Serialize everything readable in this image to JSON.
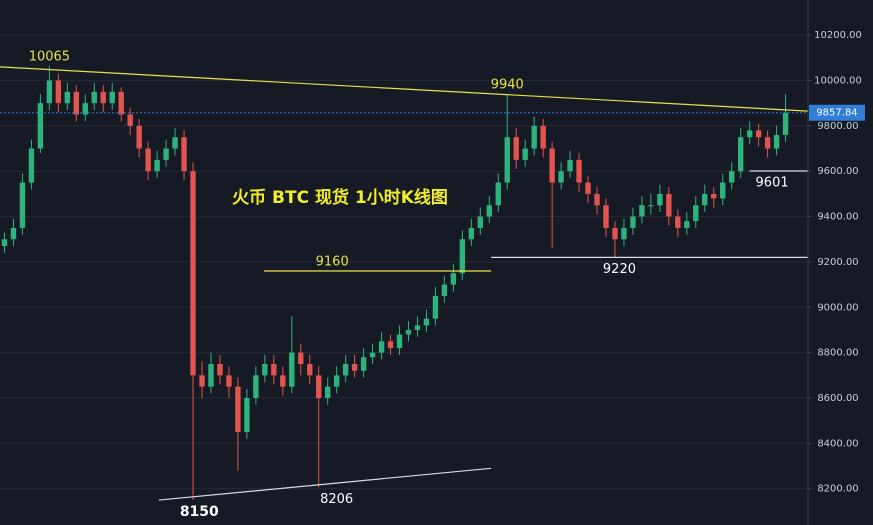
{
  "chart_data": {
    "type": "candlestick",
    "title": "火币 BTC 现货 1小时K线图",
    "up_color": "#2fb37d",
    "down_color": "#e2544e",
    "xlim": [
      -0.5,
      89.5
    ],
    "ylim": [
      8040,
      10355
    ],
    "yticks": [
      {
        "value": 8200,
        "label": "8200.00"
      },
      {
        "value": 8400,
        "label": "8400.00"
      },
      {
        "value": 8600,
        "label": "8600.00"
      },
      {
        "value": 8800,
        "label": "8800.00"
      },
      {
        "value": 9000,
        "label": "9000.00"
      },
      {
        "value": 9200,
        "label": "9200.00"
      },
      {
        "value": 9400,
        "label": "9400.00"
      },
      {
        "value": 9600,
        "label": "9600.00"
      },
      {
        "value": 9800,
        "label": "9800.00"
      },
      {
        "value": 10000,
        "label": "10000.00"
      },
      {
        "value": 10200,
        "label": "10200.00"
      }
    ],
    "grid": true,
    "candles": [
      [
        9270,
        9330,
        9240,
        9300
      ],
      [
        9300,
        9390,
        9270,
        9350
      ],
      [
        9350,
        9590,
        9320,
        9550
      ],
      [
        9550,
        9740,
        9520,
        9700
      ],
      [
        9700,
        9940,
        9680,
        9900
      ],
      [
        9900,
        10065,
        9870,
        10000
      ],
      [
        10000,
        10030,
        9860,
        9900
      ],
      [
        9900,
        9990,
        9870,
        9950
      ],
      [
        9950,
        9980,
        9820,
        9850
      ],
      [
        9850,
        9940,
        9820,
        9900
      ],
      [
        9900,
        9990,
        9870,
        9950
      ],
      [
        9950,
        9980,
        9860,
        9900
      ],
      [
        9900,
        9990,
        9870,
        9950
      ],
      [
        9950,
        9970,
        9820,
        9850
      ],
      [
        9850,
        9880,
        9760,
        9800
      ],
      [
        9800,
        9830,
        9660,
        9700
      ],
      [
        9700,
        9730,
        9560,
        9600
      ],
      [
        9600,
        9690,
        9570,
        9650
      ],
      [
        9650,
        9740,
        9620,
        9700
      ],
      [
        9700,
        9790,
        9670,
        9750
      ],
      [
        9750,
        9780,
        9560,
        9600
      ],
      [
        9600,
        9640,
        8150,
        8700
      ],
      [
        8700,
        8760,
        8600,
        8650
      ],
      [
        8650,
        8800,
        8620,
        8750
      ],
      [
        8750,
        8790,
        8660,
        8700
      ],
      [
        8700,
        8740,
        8600,
        8650
      ],
      [
        8650,
        8690,
        8280,
        8450
      ],
      [
        8450,
        8640,
        8420,
        8600
      ],
      [
        8600,
        8740,
        8570,
        8700
      ],
      [
        8700,
        8790,
        8670,
        8750
      ],
      [
        8750,
        8790,
        8660,
        8700
      ],
      [
        8700,
        8740,
        8610,
        8650
      ],
      [
        8650,
        8960,
        8620,
        8800
      ],
      [
        8800,
        8840,
        8700,
        8750
      ],
      [
        8750,
        8790,
        8660,
        8700
      ],
      [
        8700,
        8740,
        8206,
        8600
      ],
      [
        8600,
        8690,
        8570,
        8650
      ],
      [
        8650,
        8740,
        8620,
        8700
      ],
      [
        8700,
        8790,
        8670,
        8750
      ],
      [
        8750,
        8790,
        8690,
        8720
      ],
      [
        8720,
        8820,
        8690,
        8780
      ],
      [
        8780,
        8840,
        8750,
        8800
      ],
      [
        8800,
        8890,
        8770,
        8850
      ],
      [
        8850,
        8880,
        8790,
        8820
      ],
      [
        8820,
        8920,
        8790,
        8880
      ],
      [
        8880,
        8940,
        8850,
        8900
      ],
      [
        8900,
        8960,
        8870,
        8920
      ],
      [
        8920,
        8990,
        8890,
        8950
      ],
      [
        8950,
        9090,
        8920,
        9050
      ],
      [
        9050,
        9140,
        9020,
        9100
      ],
      [
        9100,
        9190,
        9070,
        9150
      ],
      [
        9150,
        9340,
        9120,
        9300
      ],
      [
        9300,
        9390,
        9270,
        9350
      ],
      [
        9350,
        9440,
        9320,
        9400
      ],
      [
        9400,
        9490,
        9370,
        9450
      ],
      [
        9450,
        9590,
        9420,
        9550
      ],
      [
        9550,
        9940,
        9520,
        9750
      ],
      [
        9750,
        9790,
        9610,
        9650
      ],
      [
        9650,
        9740,
        9620,
        9700
      ],
      [
        9700,
        9840,
        9670,
        9800
      ],
      [
        9800,
        9830,
        9660,
        9700
      ],
      [
        9700,
        9730,
        9260,
        9550
      ],
      [
        9550,
        9640,
        9520,
        9600
      ],
      [
        9600,
        9690,
        9570,
        9650
      ],
      [
        9650,
        9680,
        9510,
        9550
      ],
      [
        9550,
        9580,
        9460,
        9500
      ],
      [
        9500,
        9530,
        9410,
        9450
      ],
      [
        9450,
        9480,
        9310,
        9350
      ],
      [
        9350,
        9380,
        9220,
        9300
      ],
      [
        9300,
        9390,
        9270,
        9350
      ],
      [
        9350,
        9440,
        9320,
        9400
      ],
      [
        9400,
        9490,
        9370,
        9450
      ],
      [
        9450,
        9500,
        9410,
        9450
      ],
      [
        9450,
        9540,
        9420,
        9500
      ],
      [
        9500,
        9530,
        9360,
        9400
      ],
      [
        9400,
        9430,
        9310,
        9350
      ],
      [
        9350,
        9420,
        9320,
        9380
      ],
      [
        9380,
        9490,
        9350,
        9450
      ],
      [
        9450,
        9540,
        9420,
        9500
      ],
      [
        9500,
        9530,
        9440,
        9480
      ],
      [
        9480,
        9590,
        9450,
        9550
      ],
      [
        9550,
        9640,
        9520,
        9600
      ],
      [
        9600,
        9790,
        9570,
        9750
      ],
      [
        9750,
        9820,
        9720,
        9780
      ],
      [
        9780,
        9810,
        9710,
        9750
      ],
      [
        9750,
        9780,
        9660,
        9700
      ],
      [
        9700,
        9800,
        9670,
        9760
      ],
      [
        9760,
        9940,
        9730,
        9857.84
      ]
    ],
    "lines": [
      {
        "x": [
          -0.5,
          89.5
        ],
        "y": [
          10060,
          9865
        ],
        "color": "#e6e24a"
      },
      {
        "x": [
          28.9,
          54.2
        ],
        "y": [
          9160,
          9160
        ],
        "color": "#e6e24a"
      },
      {
        "x": [
          54.2,
          89.5
        ],
        "y": [
          9220,
          9220
        ],
        "color": "#d8dbe2"
      },
      {
        "x": [
          83,
          89.5
        ],
        "y": [
          9601,
          9601
        ],
        "color": "#d8dbe2"
      },
      {
        "x": [
          17.2,
          54.2
        ],
        "y": [
          8150,
          8290
        ],
        "color": "#d8dbe2"
      }
    ],
    "annotations": [
      {
        "label": "10065",
        "value": 10065,
        "x": 5,
        "color": "#e6e24a"
      },
      {
        "label": "9940",
        "value": 9940,
        "x": 56,
        "color": "#e6e24a"
      },
      {
        "label": "9160",
        "value": 9160,
        "x": 36.5,
        "color": "#e6e24a"
      },
      {
        "label": "9220",
        "value": 9220,
        "x": 68.5,
        "color": "#ffffff"
      },
      {
        "label": "9601",
        "value": 9601,
        "x": 85.5,
        "color": "#ffffff"
      },
      {
        "label": "8150",
        "value": 8150,
        "x": 21.7,
        "color": "#ffffff"
      },
      {
        "label": "8206",
        "value": 8206,
        "x": 37,
        "color": "#ffffff"
      }
    ],
    "last_price": {
      "value": 9857.84,
      "label": "9857.84"
    }
  }
}
